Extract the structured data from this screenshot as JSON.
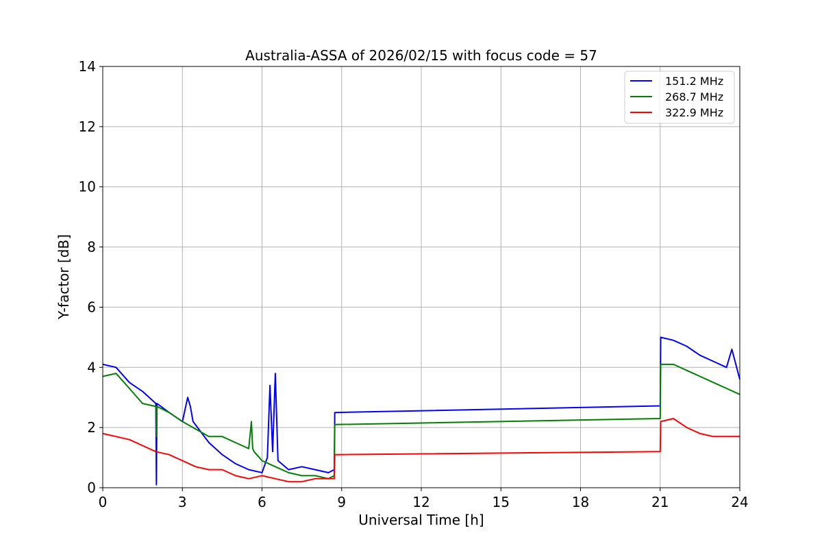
{
  "chart_data": {
    "type": "line",
    "title": "Australia-ASSA of 2026/02/15 with focus code = 57",
    "xlabel": "Universal Time [h]",
    "ylabel": "Y-factor [dB]",
    "xlim": [
      0,
      24
    ],
    "ylim": [
      0,
      14
    ],
    "xticks": [
      0,
      3,
      6,
      9,
      12,
      15,
      18,
      21,
      24
    ],
    "yticks": [
      0,
      2,
      4,
      6,
      8,
      10,
      12,
      14
    ],
    "grid": true,
    "legend_position": "top-right",
    "series": [
      {
        "name": "151.2 MHz",
        "color": "#0000ff",
        "x": [
          0,
          0.5,
          1,
          1.5,
          2,
          2.02,
          2.04,
          2.5,
          3,
          3.2,
          3.3,
          3.4,
          4,
          4.5,
          5,
          5.5,
          6,
          6.2,
          6.3,
          6.4,
          6.5,
          6.6,
          7,
          7.5,
          8,
          8.5,
          8.72,
          8.74,
          21,
          21.02,
          21.5,
          22,
          22.5,
          23,
          23.5,
          23.7,
          23.85,
          24
        ],
        "y": [
          4.1,
          4.0,
          3.5,
          3.2,
          2.8,
          0.1,
          2.8,
          2.5,
          2.2,
          3.0,
          2.7,
          2.2,
          1.5,
          1.1,
          0.8,
          0.6,
          0.5,
          1.0,
          3.4,
          1.2,
          3.8,
          0.9,
          0.6,
          0.7,
          0.6,
          0.5,
          0.6,
          2.5,
          2.72,
          5.0,
          4.9,
          4.7,
          4.4,
          4.2,
          4.0,
          4.6,
          4.1,
          3.6
        ]
      },
      {
        "name": "268.7 MHz",
        "color": "#008000",
        "x": [
          0,
          0.5,
          1,
          1.5,
          2,
          2.02,
          2.04,
          2.5,
          3,
          4,
          4.5,
          5,
          5.5,
          5.6,
          5.65,
          5.7,
          6,
          6.5,
          7,
          7.5,
          8,
          8.5,
          8.72,
          8.74,
          21,
          21.02,
          21.5,
          22,
          22.5,
          23,
          23.5,
          24
        ],
        "y": [
          3.7,
          3.8,
          3.3,
          2.8,
          2.7,
          1.7,
          2.7,
          2.5,
          2.2,
          1.7,
          1.7,
          1.5,
          1.3,
          2.2,
          1.3,
          1.2,
          0.9,
          0.7,
          0.5,
          0.4,
          0.4,
          0.3,
          0.4,
          2.1,
          2.3,
          4.1,
          4.1,
          3.9,
          3.7,
          3.5,
          3.3,
          3.1
        ]
      },
      {
        "name": "322.9 MHz",
        "color": "#ff0000",
        "x": [
          0,
          0.5,
          1,
          1.5,
          2,
          2.5,
          3,
          3.5,
          4,
          4.5,
          5,
          5.5,
          6,
          6.5,
          7,
          7.5,
          8,
          8.5,
          8.72,
          8.74,
          21,
          21.02,
          21.5,
          22,
          22.5,
          23,
          23.5,
          24
        ],
        "y": [
          1.8,
          1.7,
          1.6,
          1.4,
          1.2,
          1.1,
          0.9,
          0.7,
          0.6,
          0.6,
          0.4,
          0.3,
          0.4,
          0.3,
          0.2,
          0.2,
          0.3,
          0.3,
          0.3,
          1.1,
          1.2,
          2.2,
          2.3,
          2.0,
          1.8,
          1.7,
          1.7,
          1.7
        ]
      }
    ]
  }
}
